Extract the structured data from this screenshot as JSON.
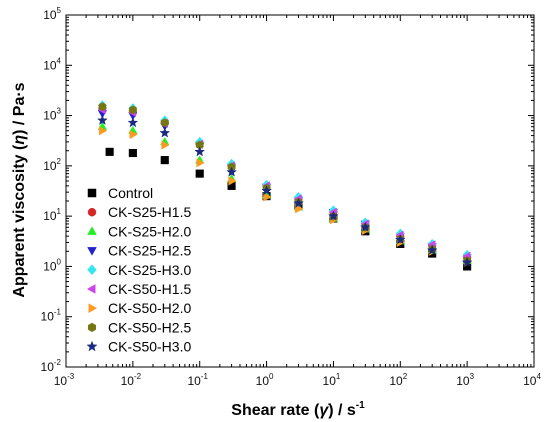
{
  "chart_data": {
    "type": "scatter",
    "xscale": "log",
    "yscale": "log",
    "xlim": [
      0.001,
      10000
    ],
    "ylim": [
      0.01,
      100000
    ],
    "xlabel_main": "Shear rate (",
    "xlabel_symbol": "γ̇",
    "xlabel_unit": ") / s",
    "xlabel_sup": "-1",
    "ylabel_main": "Apparent viscosity (",
    "ylabel_symbol": "η",
    "ylabel_unit": ") / Pa·s",
    "x_ticks": [
      {
        "base": "10",
        "exp": "-3",
        "value": 0.001
      },
      {
        "base": "10",
        "exp": "-2",
        "value": 0.01
      },
      {
        "base": "10",
        "exp": "-1",
        "value": 0.1
      },
      {
        "base": "10",
        "exp": "0",
        "value": 1
      },
      {
        "base": "10",
        "exp": "1",
        "value": 10
      },
      {
        "base": "10",
        "exp": "2",
        "value": 100
      },
      {
        "base": "10",
        "exp": "3",
        "value": 1000
      },
      {
        "base": "10",
        "exp": "4",
        "value": 10000
      }
    ],
    "y_ticks": [
      {
        "base": "10",
        "exp": "-2",
        "value": 0.01
      },
      {
        "base": "10",
        "exp": "-1",
        "value": 0.1
      },
      {
        "base": "10",
        "exp": "0",
        "value": 1
      },
      {
        "base": "10",
        "exp": "1",
        "value": 10
      },
      {
        "base": "10",
        "exp": "2",
        "value": 100
      },
      {
        "base": "10",
        "exp": "3",
        "value": 1000
      },
      {
        "base": "10",
        "exp": "4",
        "value": 10000
      },
      {
        "base": "10",
        "exp": "5",
        "value": 100000
      }
    ],
    "grid": false,
    "legend_position": "bottom-left",
    "series": [
      {
        "name": "Control",
        "marker": "square",
        "color": "#000000",
        "x": [
          0.0045,
          0.01,
          0.03,
          0.1,
          0.3,
          1,
          3,
          10,
          30,
          100,
          300,
          1000
        ],
        "y": [
          190,
          180,
          130,
          70,
          40,
          25,
          16,
          9,
          5,
          2.8,
          1.8,
          1.0
        ]
      },
      {
        "name": "CK-S25-H1.5",
        "marker": "circle",
        "color": "#d62728",
        "x": [
          0.0035,
          0.01,
          0.03,
          0.1,
          0.3,
          1,
          3,
          10,
          30,
          100,
          300,
          1000
        ],
        "y": [
          1400,
          1250,
          750,
          280,
          100,
          40,
          22,
          12,
          7,
          4,
          2.6,
          1.5
        ]
      },
      {
        "name": "CK-S25-H2.0",
        "marker": "triangle-up",
        "color": "#22ee22",
        "x": [
          0.0035,
          0.01,
          0.03,
          0.1,
          0.3,
          1,
          3,
          10,
          30,
          100,
          300,
          1000
        ],
        "y": [
          600,
          500,
          300,
          130,
          55,
          26,
          15,
          9,
          5.5,
          3.2,
          2.1,
          1.3
        ]
      },
      {
        "name": "CK-S25-H2.5",
        "marker": "triangle-down",
        "color": "#2222cc",
        "x": [
          0.0035,
          0.01,
          0.03,
          0.1,
          0.3,
          1,
          3,
          10,
          30,
          100,
          300,
          1000
        ],
        "y": [
          1100,
          1000,
          620,
          250,
          95,
          38,
          21,
          12,
          7,
          4,
          2.5,
          1.5
        ]
      },
      {
        "name": "CK-S25-H3.0",
        "marker": "diamond",
        "color": "#33e6f0",
        "x": [
          0.0035,
          0.01,
          0.03,
          0.1,
          0.3,
          1,
          3,
          10,
          30,
          100,
          300,
          1000
        ],
        "y": [
          1600,
          1400,
          800,
          300,
          110,
          42,
          24,
          13,
          7.5,
          4.5,
          2.8,
          1.7
        ]
      },
      {
        "name": "CK-S50-H1.5",
        "marker": "triangle-left",
        "color": "#cc44ee",
        "x": [
          0.0035,
          0.01,
          0.03,
          0.1,
          0.3,
          1,
          3,
          10,
          30,
          100,
          300,
          1000
        ],
        "y": [
          1300,
          1150,
          700,
          270,
          100,
          40,
          22,
          12,
          7,
          4.2,
          2.7,
          1.6
        ]
      },
      {
        "name": "CK-S50-H2.0",
        "marker": "triangle-right",
        "color": "#ff9922",
        "x": [
          0.0035,
          0.01,
          0.03,
          0.1,
          0.3,
          1,
          3,
          10,
          30,
          100,
          300,
          1000
        ],
        "y": [
          500,
          420,
          260,
          115,
          50,
          24,
          14,
          8.5,
          5.2,
          3,
          2,
          1.2
        ]
      },
      {
        "name": "CK-S50-H2.5",
        "marker": "hexagon",
        "color": "#777711",
        "x": [
          0.0035,
          0.01,
          0.03,
          0.1,
          0.3,
          1,
          3,
          10,
          30,
          100,
          300,
          1000
        ],
        "y": [
          1500,
          1300,
          720,
          260,
          95,
          36,
          19,
          10,
          6,
          3.5,
          2.2,
          1.3
        ]
      },
      {
        "name": "CK-S50-H3.0",
        "marker": "star",
        "color": "#1a2a80",
        "x": [
          0.0035,
          0.01,
          0.03,
          0.1,
          0.3,
          1,
          3,
          10,
          30,
          100,
          300,
          1000
        ],
        "y": [
          800,
          720,
          450,
          190,
          75,
          32,
          18,
          10,
          6,
          3.4,
          2.1,
          1.2
        ]
      }
    ]
  }
}
